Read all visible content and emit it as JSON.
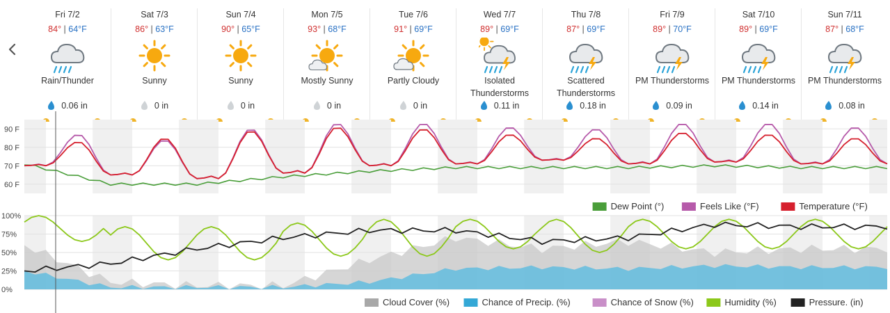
{
  "days": [
    {
      "date": "Fri 7/2",
      "hi": "84°",
      "lo": "64°F",
      "cond": [
        "Rain/Thunder"
      ],
      "precip": "0.06 in",
      "precip_type": "rain",
      "icon": "rain-thunder-icon"
    },
    {
      "date": "Sat 7/3",
      "hi": "86°",
      "lo": "63°F",
      "cond": [
        "Sunny"
      ],
      "precip": "0 in",
      "precip_type": "none",
      "icon": "sunny-icon"
    },
    {
      "date": "Sun 7/4",
      "hi": "90°",
      "lo": "65°F",
      "cond": [
        "Sunny"
      ],
      "precip": "0 in",
      "precip_type": "none",
      "icon": "sunny-icon"
    },
    {
      "date": "Mon 7/5",
      "hi": "93°",
      "lo": "68°F",
      "cond": [
        "Mostly Sunny"
      ],
      "precip": "0 in",
      "precip_type": "none",
      "icon": "mostly-sunny-icon"
    },
    {
      "date": "Tue 7/6",
      "hi": "91°",
      "lo": "69°F",
      "cond": [
        "Partly Cloudy"
      ],
      "precip": "0 in",
      "precip_type": "none",
      "icon": "partly-cloudy-icon"
    },
    {
      "date": "Wed 7/7",
      "hi": "89°",
      "lo": "69°F",
      "cond": [
        "Isolated",
        "Thunderstorms"
      ],
      "precip": "0.11 in",
      "precip_type": "rain",
      "icon": "isolated-thunderstorms-icon"
    },
    {
      "date": "Thu 7/8",
      "hi": "87°",
      "lo": "69°F",
      "cond": [
        "Scattered",
        "Thunderstorms"
      ],
      "precip": "0.18 in",
      "precip_type": "rain",
      "icon": "thunderstorm-icon"
    },
    {
      "date": "Fri 7/9",
      "hi": "89°",
      "lo": "70°F",
      "cond": [
        "PM Thunderstorms"
      ],
      "precip": "0.09 in",
      "precip_type": "rain",
      "icon": "thunderstorm-icon"
    },
    {
      "date": "Sat 7/10",
      "hi": "89°",
      "lo": "69°F",
      "cond": [
        "PM Thunderstorms"
      ],
      "precip": "0.14 in",
      "precip_type": "rain",
      "icon": "thunderstorm-icon"
    },
    {
      "date": "Sun 7/11",
      "hi": "87°",
      "lo": "68°F",
      "cond": [
        "PM Thunderstorms"
      ],
      "precip": "0.08 in",
      "precip_type": "rain",
      "icon": "thunderstorm-icon"
    }
  ],
  "temp_chart": {
    "y_ticks": [
      "90 F",
      "80 F",
      "70 F",
      "60 F"
    ],
    "y_values": [
      90,
      80,
      70,
      60
    ],
    "legend": [
      {
        "label": "Dew Point (°)",
        "color": "#4a9e3a"
      },
      {
        "label": "Feels Like (°F)",
        "color": "#b65aaa"
      },
      {
        "label": "Temperature (°F)",
        "color": "#d6202e"
      }
    ]
  },
  "pct_chart": {
    "y_ticks": [
      "100%",
      "75%",
      "50%",
      "25%",
      "0%"
    ],
    "y_values": [
      100,
      75,
      50,
      25,
      0
    ],
    "legend": [
      {
        "label": "Cloud Cover (%)",
        "color": "#a8a8a8"
      },
      {
        "label": "Chance of Precip. (%)",
        "color": "#34a8d6"
      },
      {
        "label": "Chance of Snow (%)",
        "color": "#c98fc8"
      },
      {
        "label": "Humidity (%)",
        "color": "#8cc81a"
      },
      {
        "label": "Pressure. (in)",
        "color": "#222222"
      }
    ]
  },
  "chart_data": [
    {
      "type": "line",
      "x": [
        "Fri 7/2",
        "Sat 7/3",
        "Sun 7/4",
        "Mon 7/5",
        "Tue 7/6",
        "Wed 7/7",
        "Thu 7/8",
        "Fri 7/9",
        "Sat 7/10",
        "Sun 7/11"
      ],
      "ylim": [
        55,
        95
      ],
      "series": [
        {
          "name": "Temperature (°F)",
          "daily_max": [
            83,
            85,
            89,
            91,
            90,
            87,
            85,
            88,
            87,
            85
          ],
          "daily_min": [
            70,
            65,
            63,
            66,
            70,
            71,
            73,
            71,
            72,
            71
          ]
        },
        {
          "name": "Feels Like (°F)",
          "daily_max": [
            87,
            84,
            90,
            93,
            93,
            91,
            90,
            93,
            93,
            91
          ],
          "daily_min": [
            70,
            65,
            63,
            66,
            70,
            71,
            73,
            71,
            72,
            71
          ]
        },
        {
          "name": "Dew Point (°)",
          "daily_avg": [
            71,
            60,
            60,
            64,
            67,
            69,
            69,
            69,
            70,
            69
          ]
        }
      ]
    },
    {
      "type": "area",
      "x": [
        "Fri 7/2",
        "Sat 7/3",
        "Sun 7/4",
        "Mon 7/5",
        "Tue 7/6",
        "Wed 7/7",
        "Thu 7/8",
        "Fri 7/9",
        "Sat 7/10",
        "Sun 7/11"
      ],
      "ylim": [
        0,
        100
      ],
      "series": [
        {
          "name": "Cloud Cover (%)",
          "daily_avg": [
            60,
            10,
            5,
            5,
            40,
            70,
            55,
            65,
            50,
            55
          ]
        },
        {
          "name": "Chance of Precip. (%)",
          "daily_avg": [
            25,
            3,
            3,
            3,
            10,
            28,
            30,
            28,
            32,
            30
          ]
        },
        {
          "name": "Humidity (%)",
          "daily_range": [
            [
              65,
              100
            ],
            [
              40,
              85
            ],
            [
              40,
              85
            ],
            [
              45,
              90
            ],
            [
              45,
              95
            ],
            [
              55,
              95
            ],
            [
              50,
              95
            ],
            [
              55,
              95
            ],
            [
              55,
              95
            ],
            [
              55,
              95
            ]
          ]
        },
        {
          "name": "Pressure. (in)",
          "daily_avg": [
            25,
            35,
            55,
            70,
            80,
            80,
            65,
            70,
            88,
            85
          ]
        }
      ]
    }
  ]
}
